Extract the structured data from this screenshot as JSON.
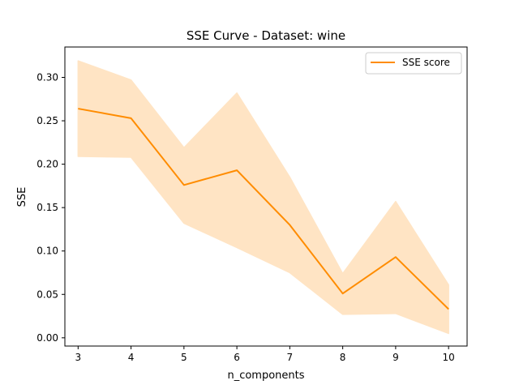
{
  "chart_data": {
    "type": "line",
    "title": "SSE Curve - Dataset: wine",
    "xlabel": "n_components",
    "ylabel": "SSE",
    "x": [
      3,
      4,
      5,
      6,
      7,
      8,
      9,
      10
    ],
    "xticks": [
      "3",
      "4",
      "5",
      "6",
      "7",
      "8",
      "9",
      "10"
    ],
    "yticks": [
      "0.00",
      "0.05",
      "0.10",
      "0.15",
      "0.20",
      "0.25",
      "0.30"
    ],
    "ytick_values": [
      0,
      0.05,
      0.1,
      0.15,
      0.2,
      0.25,
      0.3
    ],
    "xlim": [
      2.75,
      10.35
    ],
    "ylim": [
      -0.0095,
      0.335
    ],
    "series": [
      {
        "name": "SSE score",
        "color": "#ff8c00",
        "values": [
          0.264,
          0.253,
          0.176,
          0.193,
          0.13,
          0.051,
          0.093,
          0.033
        ],
        "band_upper": [
          0.319,
          0.297,
          0.219,
          0.282,
          0.185,
          0.074,
          0.157,
          0.061
        ],
        "band_lower": [
          0.209,
          0.208,
          0.132,
          0.104,
          0.075,
          0.027,
          0.028,
          0.005
        ],
        "band_color": "#ffe4c4"
      }
    ],
    "legend_position": "top-right",
    "grid": false
  }
}
